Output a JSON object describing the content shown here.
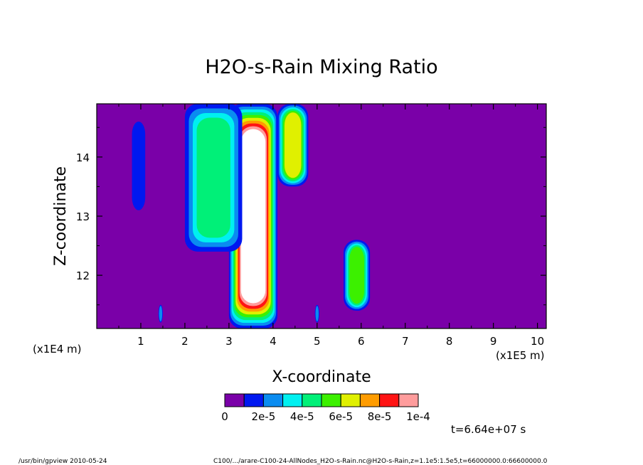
{
  "chart_data": {
    "type": "heatmap",
    "title": "H2O-s-Rain Mixing Ratio",
    "xlabel": "X-coordinate",
    "ylabel": "Z-coordinate",
    "x_unit_label": "(x1E5 m)",
    "y_unit_label": "(x1E4 m)",
    "xlim": [
      0,
      10.2
    ],
    "ylim": [
      11.1,
      14.9
    ],
    "x_ticks": [
      1,
      2,
      3,
      4,
      5,
      6,
      7,
      8,
      9,
      10
    ],
    "y_ticks": [
      12,
      13,
      14
    ],
    "time_label": "t=6.64e+07 s",
    "colorbar": {
      "colors": [
        "#7a00a8",
        "#0018f0",
        "#0a8cf0",
        "#00f0f0",
        "#00f078",
        "#3cf000",
        "#e0f000",
        "#ff9c00",
        "#ff1414",
        "#ff9c9c"
      ],
      "labels": [
        "0",
        "2e-5",
        "4e-5",
        "6e-5",
        "8e-5",
        "1e-4"
      ],
      "overflow_color": "#ffffff"
    },
    "features": [
      {
        "x": [
          3.0,
          4.1
        ],
        "z": [
          11.1,
          14.9
        ],
        "level": 10
      },
      {
        "x": [
          2.0,
          3.3
        ],
        "z": [
          12.4,
          14.9
        ],
        "level": 4
      },
      {
        "x": [
          4.1,
          4.8
        ],
        "z": [
          13.5,
          14.9
        ],
        "level": 6
      },
      {
        "x": [
          0.8,
          1.1
        ],
        "z": [
          13.1,
          14.6
        ],
        "level": 1
      },
      {
        "x": [
          5.6,
          6.2
        ],
        "z": [
          11.4,
          12.6
        ],
        "level": 5
      },
      {
        "x": [
          1.4,
          1.5
        ],
        "z": [
          11.2,
          11.5
        ],
        "level": 2
      },
      {
        "x": [
          4.95,
          5.05
        ],
        "z": [
          11.2,
          11.5
        ],
        "level": 2
      }
    ]
  },
  "footer": {
    "left": "/usr/bin/gpview   2010-05-24",
    "right": "C100/.../arare-C100-24-AllNodes_H2O-s-Rain.nc@H2O-s-Rain,z=1.1e5:1.5e5,t=66000000.0:66600000.0"
  }
}
